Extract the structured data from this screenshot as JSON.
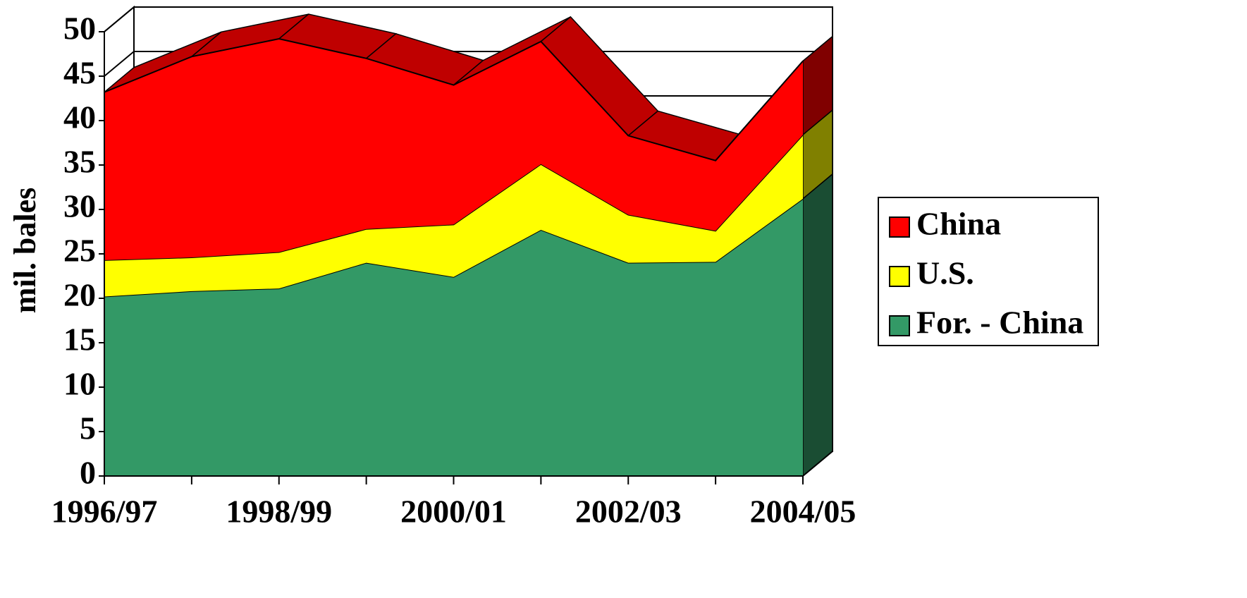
{
  "chart_data": {
    "type": "area",
    "stacked": true,
    "y_label": "mil. bales",
    "categories": [
      "1996/97",
      null,
      "1998/99",
      null,
      "2000/01",
      null,
      "2002/03",
      null,
      "2004/05"
    ],
    "series": [
      {
        "name": "China",
        "color": "#ff0000",
        "values": [
          18.9,
          22.6,
          24.0,
          19.2,
          15.7,
          13.8,
          8.9,
          7.9,
          8.3
        ]
      },
      {
        "name": "U.S.",
        "color": "#ffff00",
        "values": [
          4.1,
          3.8,
          4.1,
          3.8,
          5.9,
          7.4,
          5.4,
          3.5,
          7.2
        ]
      },
      {
        "name": "For. - China",
        "color": "#339966",
        "values": [
          20.2,
          20.8,
          21.1,
          24.0,
          22.4,
          27.7,
          24.0,
          24.1,
          31.2
        ]
      }
    ],
    "ylim": [
      0,
      50
    ],
    "yticks": [
      0,
      5,
      10,
      15,
      20,
      25,
      30,
      35,
      40,
      45,
      50
    ],
    "legend": "right"
  }
}
